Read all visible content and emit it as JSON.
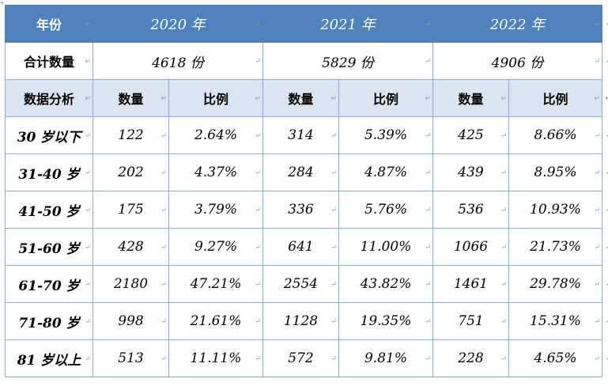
{
  "header": {
    "label": "年份",
    "years": [
      "2020 年",
      "2021 年",
      "2022 年"
    ]
  },
  "total": {
    "label": "合计数量",
    "values": [
      "4618 份",
      "5829 份",
      "4906 份"
    ]
  },
  "subheader": {
    "label": "数据分析",
    "count": "数量",
    "ratio": "比例"
  },
  "rows": [
    {
      "label": "30 岁以下",
      "cells": [
        "122",
        "2.64%",
        "314",
        "5.39%",
        "425",
        "8.66%"
      ]
    },
    {
      "label": "31-40 岁",
      "cells": [
        "202",
        "4.37%",
        "284",
        "4.87%",
        "439",
        "8.95%"
      ]
    },
    {
      "label": "41-50 岁",
      "cells": [
        "175",
        "3.79%",
        "336",
        "5.76%",
        "536",
        "10.93%"
      ]
    },
    {
      "label": "51-60 岁",
      "cells": [
        "428",
        "9.27%",
        "641",
        "11.00%",
        "1066",
        "21.73%"
      ]
    },
    {
      "label": "61-70 岁",
      "cells": [
        "2180",
        "47.21%",
        "2554",
        "43.82%",
        "1461",
        "29.78%"
      ]
    },
    {
      "label": "71-80 岁",
      "cells": [
        "998",
        "21.61%",
        "1128",
        "19.35%",
        "751",
        "15.31%"
      ]
    },
    {
      "label": "81 岁以上",
      "cells": [
        "513",
        "11.11%",
        "572",
        "9.81%",
        "228",
        "4.65%"
      ]
    }
  ],
  "marks": {
    "cell_end": "↵",
    "anchor": "⌖"
  }
}
